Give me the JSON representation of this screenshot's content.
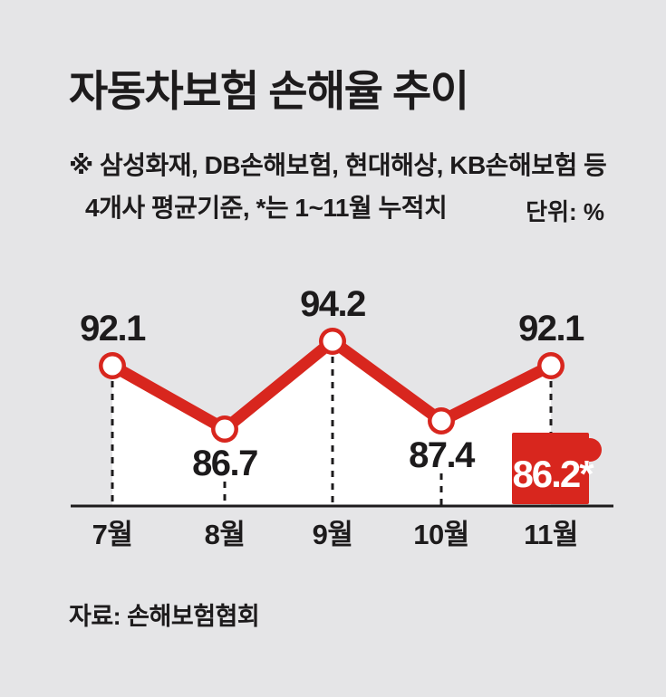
{
  "title": "자동차보험 손해율 추이",
  "notes": {
    "line1": "※ 삼성화재, DB손해보험, 현대해상, KB손해보험 등",
    "line2": "4개사 평균기준, *는 1~11월 누적치"
  },
  "unit_label": "단위: %",
  "source_label": "자료: 손해보험협회",
  "colors": {
    "background": "#e5e5e7",
    "line_red": "#d8261e",
    "text": "#1d1b1c",
    "axis": "#1d1b1c",
    "guide_dash": "#1d1b1c",
    "area_fill": "#ffffff",
    "marker_fill": "#ffffff",
    "badge_fill": "#d8261e",
    "badge_text": "#ffffff"
  },
  "chart_data": {
    "type": "line",
    "title": "자동차보험 손해율 추이",
    "categories": [
      "7월",
      "8월",
      "9월",
      "10월",
      "11월"
    ],
    "series": [
      {
        "name": "자동차보험 손해율(%)",
        "values": [
          92.1,
          86.7,
          94.2,
          87.4,
          92.1
        ]
      }
    ],
    "point_labels": [
      "92.1",
      "86.7",
      "94.2",
      "87.4",
      "92.1"
    ],
    "label_positions": [
      "above",
      "below",
      "above",
      "below",
      "above"
    ],
    "annotation": {
      "text": "86.2*",
      "value": 86.2,
      "meaning": "1~11월 누적치",
      "category": "11월"
    },
    "xlabel": "",
    "ylabel": "%",
    "ylim": [
      80,
      96
    ],
    "grid": false,
    "legend": false
  }
}
